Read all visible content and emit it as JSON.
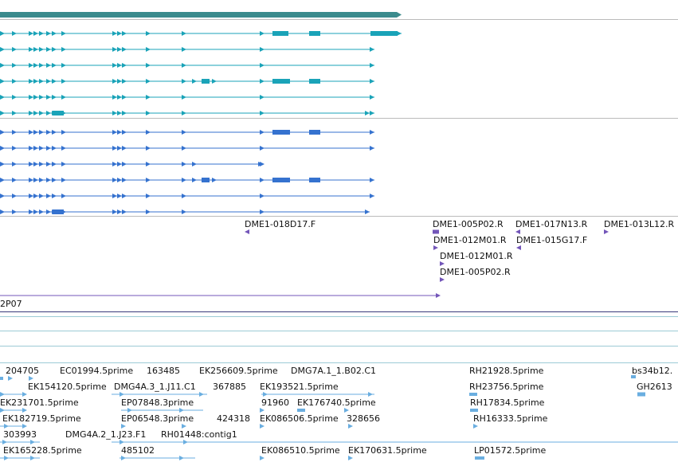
{
  "colors": {
    "top_bar": "#3b8b8d",
    "teal": "#1aa3b8",
    "blue": "#3572cf",
    "purple": "#7356b9",
    "light_blue": "#6aaee0",
    "separator": "#bbbbbb",
    "teal_separator": "#9ccbd6",
    "dark_separator": "#3a3a7a"
  },
  "clone_labels": [
    "DME1-018D17.F",
    "DME1-005P02.R",
    "DME1-017N13.R",
    "DME1-013L12.R",
    "DME1-012M01.R",
    "DME1-015G17.F",
    "DME1-012M01.R",
    "DME1-005P02.R"
  ],
  "partial_label": "2P07",
  "est_rows": [
    [
      "204705",
      "EC01994.5prime",
      "163485",
      "EK256609.5prime",
      "DMG7A.1_1.B02.C1",
      "RH21928.5prime",
      "bs34b12."
    ],
    [
      "EK154120.5prime",
      "DMG4A.3_1.J11.C1",
      "367885",
      "EK193521.5prime",
      "RH23756.5prime",
      "GH2613"
    ],
    [
      "EK231701.5prime",
      "EP07848.3prime",
      "91960",
      "EK176740.5prime",
      "RH17834.5prime"
    ],
    [
      "EK182719.5prime",
      "EP06548.3prime",
      "424318",
      "EK086506.5prime",
      "328656",
      "RH16333.5prime"
    ],
    [
      "303993",
      "DMG4A.2_1.J23.F1",
      "RH01448:contig1"
    ],
    [
      "EK165228.5prime",
      "485102",
      "EK086510.5prime",
      "EK170631.5prime",
      "LP01572.5prime"
    ]
  ]
}
